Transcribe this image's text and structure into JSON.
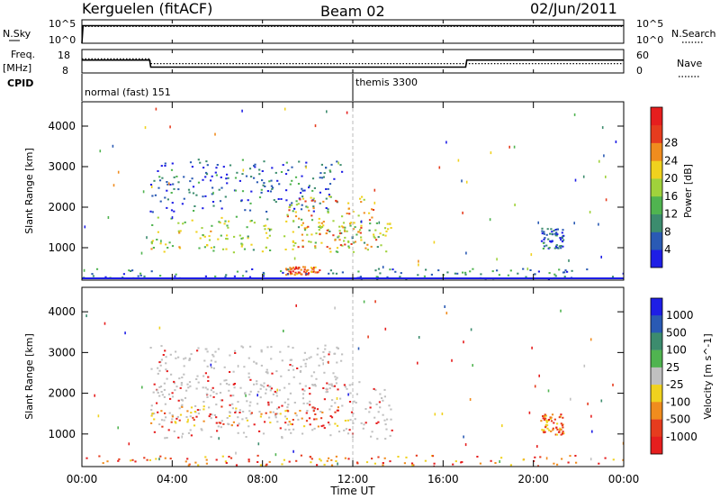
{
  "header": {
    "station": "Kerguelen (fitACF)",
    "beam": "Beam 02",
    "date": "02/Jun/2011"
  },
  "strip_labels": {
    "nsky": "N.Sky",
    "nsearch": "N.Search",
    "freq_line1": "Freq.",
    "freq_line2": "[MHz]",
    "nave": "Nave",
    "cpid": "CPID",
    "noise_tick_top": "10^5",
    "noise_tick_bottom": "10^0",
    "freq_tick_top": "18",
    "freq_tick_bottom": "8",
    "nave_tick_top": "60",
    "nave_tick_bottom": "0"
  },
  "cpid_labels": [
    {
      "text": "normal (fast) 151",
      "start_hour": 0
    },
    {
      "text": "themis 3300",
      "start_hour": 12
    }
  ],
  "colors": {
    "power_scale": [
      "#1e1ee6",
      "#2a5ab4",
      "#3c8c6e",
      "#50b450",
      "#a0d23c",
      "#f0d21e",
      "#f08c1e",
      "#e63c1e",
      "#e61e1e"
    ],
    "velocity_scale": [
      "#1e1ee6",
      "#2a5ab4",
      "#3c8c6e",
      "#50b450",
      "#c0c0c0",
      "#f0d21e",
      "#f08c1e",
      "#e63c1e",
      "#e61e1e"
    ],
    "ground_scatter": "#c0c0c0"
  },
  "chart_data": [
    {
      "type": "line",
      "panel": "noise",
      "ylabel_left": "N.Sky",
      "ylabel_right": "N.Search",
      "x_label": "",
      "series": [
        {
          "name": "N.Sky",
          "style": "solid",
          "x_hours": [
            0,
            0.05,
            12,
            24
          ],
          "level": [
            0.0,
            0.75,
            0.75,
            0.75
          ]
        },
        {
          "name": "N.Search",
          "style": "dotted",
          "x_hours": [
            0,
            24
          ],
          "level": [
            0.72,
            0.72
          ]
        }
      ]
    },
    {
      "type": "line",
      "panel": "frequency",
      "ylabel_left": "Freq. [MHz]",
      "ylabel_right": "Nave",
      "ylim_left": [
        8,
        18
      ],
      "ylim_right": [
        0,
        60
      ],
      "series": [
        {
          "name": "Freq",
          "style": "solid",
          "x_hours": [
            0,
            3,
            3.05,
            17,
            17.05,
            24
          ],
          "y": [
            13.5,
            13.5,
            10.5,
            10.5,
            13.5,
            13.5
          ]
        },
        {
          "name": "Nave",
          "style": "dotted",
          "x_hours": [
            0,
            3,
            3.05,
            24
          ],
          "y": [
            36,
            36,
            24,
            24
          ]
        }
      ]
    },
    {
      "type": "heatmap",
      "panel": "power",
      "ylabel": "Slant Range [km]",
      "colorbar_label": "Power [dB]",
      "colorbar_ticks": [
        "4",
        "8",
        "12",
        "16",
        "20",
        "24",
        "28"
      ],
      "x_range_hours": [
        0,
        24
      ],
      "ylim": [
        200,
        4600
      ],
      "yticks": [
        1000,
        2000,
        3000,
        4000
      ],
      "regions": [
        {
          "t0": 3.0,
          "t1": 13.7,
          "r0": 900,
          "r1": 1800,
          "power_db": 16
        },
        {
          "t0": 3.0,
          "t1": 11.5,
          "r0": 1900,
          "r1": 3200,
          "power_db": 6
        },
        {
          "t0": 9.0,
          "t1": 13.0,
          "r0": 1000,
          "r1": 2300,
          "power_db": 22
        },
        {
          "t0": 9.0,
          "t1": 10.5,
          "r0": 350,
          "r1": 550,
          "power_db": 26
        },
        {
          "t0": 20.3,
          "t1": 21.3,
          "r0": 1000,
          "r1": 1500,
          "power_db": 6
        },
        {
          "t0": 0.0,
          "t1": 24.0,
          "r0": 250,
          "r1": 500,
          "power_db": 8
        }
      ]
    },
    {
      "type": "heatmap",
      "panel": "velocity",
      "ylabel": "Slant Range [km]",
      "colorbar_label": "Velocity [m s^-1]",
      "colorbar_ticks": [
        "1000",
        "500",
        "100",
        "25",
        "-25",
        "-100",
        "-500",
        "-1000"
      ],
      "x_range_hours": [
        0,
        24
      ],
      "ylim": [
        200,
        4600
      ],
      "yticks": [
        1000,
        2000,
        3000,
        4000
      ],
      "regions": [
        {
          "t0": 3.0,
          "t1": 13.7,
          "r0": 900,
          "r1": 2300,
          "velocity": 0
        },
        {
          "t0": 3.0,
          "t1": 11.5,
          "r0": 2000,
          "r1": 3200,
          "velocity": 0
        },
        {
          "t0": 3.0,
          "t1": 12.0,
          "r0": 1200,
          "r1": 1700,
          "velocity": -200
        },
        {
          "t0": 20.3,
          "t1": 21.3,
          "r0": 1000,
          "r1": 1500,
          "velocity": -150
        },
        {
          "t0": 0.0,
          "t1": 24.0,
          "r0": 250,
          "r1": 500,
          "velocity": -100
        }
      ]
    }
  ],
  "axis": {
    "xticks": [
      "00:00",
      "04:00",
      "08:00",
      "12:00",
      "16:00",
      "20:00",
      "00:00"
    ],
    "xlabel": "Time UT"
  }
}
